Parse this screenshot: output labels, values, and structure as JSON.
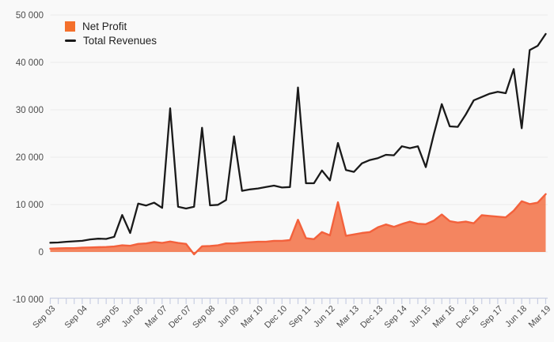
{
  "legend": {
    "items": [
      {
        "label": "Net Profit",
        "swatch": "square",
        "color": "#f4702c"
      },
      {
        "label": "Total Revenues",
        "swatch": "line",
        "color": "#1a1a1a"
      }
    ]
  },
  "colors": {
    "background": "#f9f9f9",
    "gridline": "#ebebeb",
    "axis": "#c9cfe3",
    "axis_text": "#4c4c4c",
    "legend_text": "#222222"
  },
  "chart_data": {
    "type": "area",
    "title": "",
    "x_interval": "quarterly",
    "n_points": 63,
    "x_tick_labels": [
      "Sep 03",
      "Sep 04",
      "Sep 05",
      "Jun 06",
      "Mar 07",
      "Dec 07",
      "Sep 08",
      "Jun 09",
      "Mar 10",
      "Dec 10",
      "Sep 11",
      "Jun 12",
      "Mar 13",
      "Dec 13",
      "Sep 14",
      "Jun 15",
      "Mar 16",
      "Dec 16",
      "Sep 17",
      "Jun 18",
      "Mar 19"
    ],
    "x_tick_label_indices": [
      0,
      4,
      8,
      11,
      14,
      17,
      20,
      23,
      26,
      29,
      32,
      35,
      38,
      41,
      44,
      47,
      50,
      53,
      56,
      59,
      62
    ],
    "y_ticks": [
      {
        "value": 50000,
        "label": "50 000"
      },
      {
        "value": 40000,
        "label": "40 000"
      },
      {
        "value": 30000,
        "label": "30 000"
      },
      {
        "value": 20000,
        "label": "20 000"
      },
      {
        "value": 10000,
        "label": "10 000"
      },
      {
        "value": 0,
        "label": "0"
      },
      {
        "value": -10000,
        "label": "-10 000"
      }
    ],
    "ylim": [
      -10000,
      50000
    ],
    "grid": true,
    "legend_position": "top-left",
    "series": [
      {
        "name": "Net Profit",
        "type": "area",
        "stroke": "#f3613c",
        "fill": "rgba(243,104,58,0.8)",
        "values": [
          700,
          750,
          800,
          800,
          900,
          950,
          1000,
          1050,
          1150,
          1400,
          1300,
          1700,
          1800,
          2100,
          1900,
          2200,
          1900,
          1700,
          -500,
          1200,
          1250,
          1400,
          1800,
          1800,
          1950,
          2050,
          2150,
          2150,
          2350,
          2350,
          2500,
          6800,
          2900,
          2700,
          4200,
          3500,
          10500,
          3400,
          3700,
          4000,
          4200,
          5200,
          5800,
          5300,
          5900,
          6400,
          5950,
          5850,
          6600,
          7900,
          6500,
          6200,
          6400,
          6050,
          7750,
          7600,
          7450,
          7300,
          8700,
          10700,
          10100,
          10400,
          12200
        ]
      },
      {
        "name": "Total Revenues",
        "type": "line",
        "stroke": "#1a1a1a",
        "values": [
          1950,
          2000,
          2150,
          2250,
          2350,
          2650,
          2800,
          2750,
          3200,
          7800,
          4000,
          10200,
          9800,
          10400,
          9300,
          30300,
          9550,
          9170,
          9550,
          26200,
          9830,
          9950,
          10950,
          24400,
          12900,
          13200,
          13400,
          13700,
          14000,
          13600,
          13700,
          34700,
          14500,
          14500,
          17200,
          15100,
          23000,
          17300,
          16900,
          18700,
          19400,
          19800,
          20500,
          20400,
          22300,
          21900,
          22300,
          17900,
          24800,
          31200,
          26500,
          26400,
          29000,
          32000,
          32700,
          33400,
          33800,
          33500,
          38600,
          26100,
          42600,
          43500,
          46000
        ]
      }
    ]
  }
}
